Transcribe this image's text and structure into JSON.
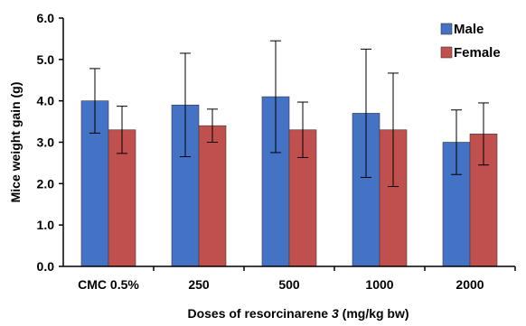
{
  "chart_data": {
    "type": "bar",
    "title": "",
    "xlabel": {
      "prefix": "Doses of resorcinarene ",
      "italic": "3",
      "suffix": " (mg/kg bw)"
    },
    "ylabel": "Mice weight gain (g)",
    "ylim": [
      0,
      6
    ],
    "yticks": [
      "0.0",
      "1.0",
      "2.0",
      "3.0",
      "4.0",
      "5.0",
      "6.0"
    ],
    "categories": [
      "CMC 0.5%",
      "250",
      "500",
      "1000",
      "2000"
    ],
    "series": [
      {
        "name": "Male",
        "color": "#4472c4",
        "values": [
          4.0,
          3.9,
          4.1,
          3.7,
          3.0
        ],
        "errors": [
          0.78,
          1.25,
          1.35,
          1.55,
          0.78
        ]
      },
      {
        "name": "Female",
        "color": "#c0504d",
        "values": [
          3.3,
          3.4,
          3.3,
          3.3,
          3.2
        ],
        "errors": [
          0.57,
          0.4,
          0.67,
          1.37,
          0.75
        ]
      }
    ],
    "legend_position": "top-right",
    "grid": false
  }
}
